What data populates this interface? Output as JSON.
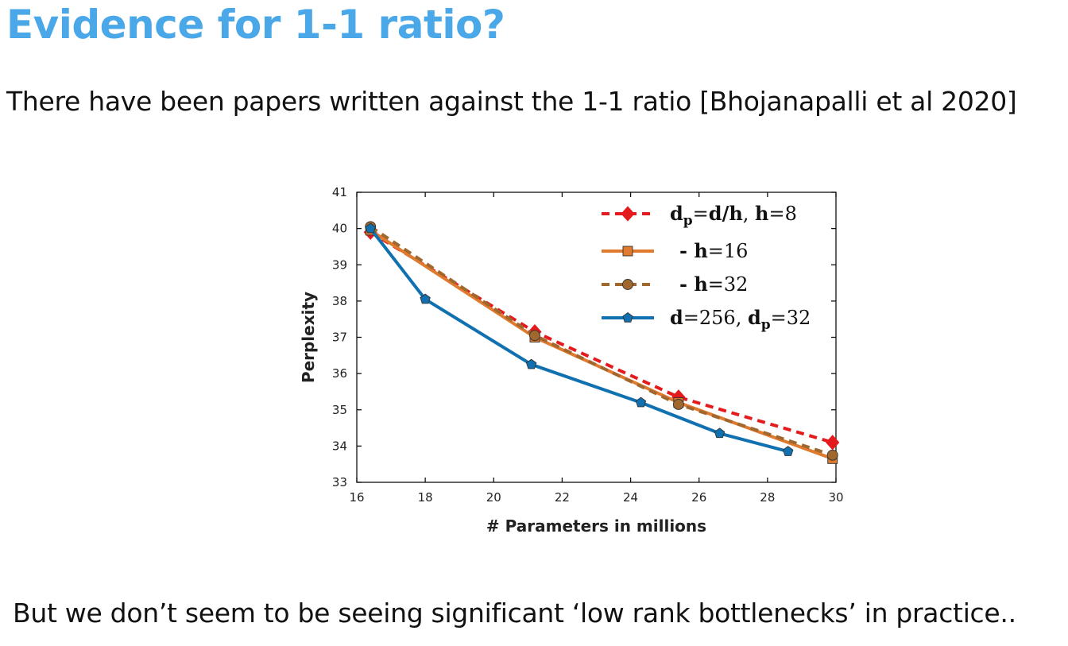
{
  "slide": {
    "title": "Evidence for 1-1 ratio?",
    "subtitle": "There have been papers written against the 1-1 ratio [Bhojanapalli et al 2020]",
    "footer": "But we don’t seem to be seeing significant ‘low rank bottlenecks’ in practice.."
  },
  "chart_data": {
    "type": "line",
    "xlabel": "# Parameters in millions",
    "ylabel": "Perplexity",
    "xlim": [
      16,
      30
    ],
    "ylim": [
      33,
      41
    ],
    "xticks": [
      16,
      18,
      20,
      22,
      24,
      26,
      28,
      30
    ],
    "yticks": [
      33,
      34,
      35,
      36,
      37,
      38,
      39,
      40,
      41
    ],
    "grid": false,
    "legend_position": "top-right",
    "series": [
      {
        "name": "dp = d/h, h = 8",
        "color": "#e41a1c",
        "dash": true,
        "marker": "diamond",
        "x": [
          16.4,
          21.2,
          25.4,
          29.9
        ],
        "y": [
          39.9,
          37.15,
          35.35,
          34.1
        ]
      },
      {
        "name": "- h = 16",
        "color": "#e07a2e",
        "dash": false,
        "marker": "square",
        "x": [
          16.4,
          21.2,
          25.4,
          29.9
        ],
        "y": [
          39.95,
          37.0,
          35.2,
          33.65
        ]
      },
      {
        "name": "- h = 32",
        "color": "#a0682e",
        "dash": true,
        "marker": "circle",
        "x": [
          16.4,
          21.2,
          25.4,
          29.9
        ],
        "y": [
          40.05,
          37.05,
          35.15,
          33.75
        ]
      },
      {
        "name": "d = 256, dp = 32",
        "color": "#1070b0",
        "dash": false,
        "marker": "pentagon",
        "x": [
          16.4,
          18.0,
          21.1,
          24.3,
          26.6,
          28.6
        ],
        "y": [
          40.0,
          38.05,
          36.25,
          35.2,
          34.35,
          33.85
        ]
      }
    ]
  }
}
